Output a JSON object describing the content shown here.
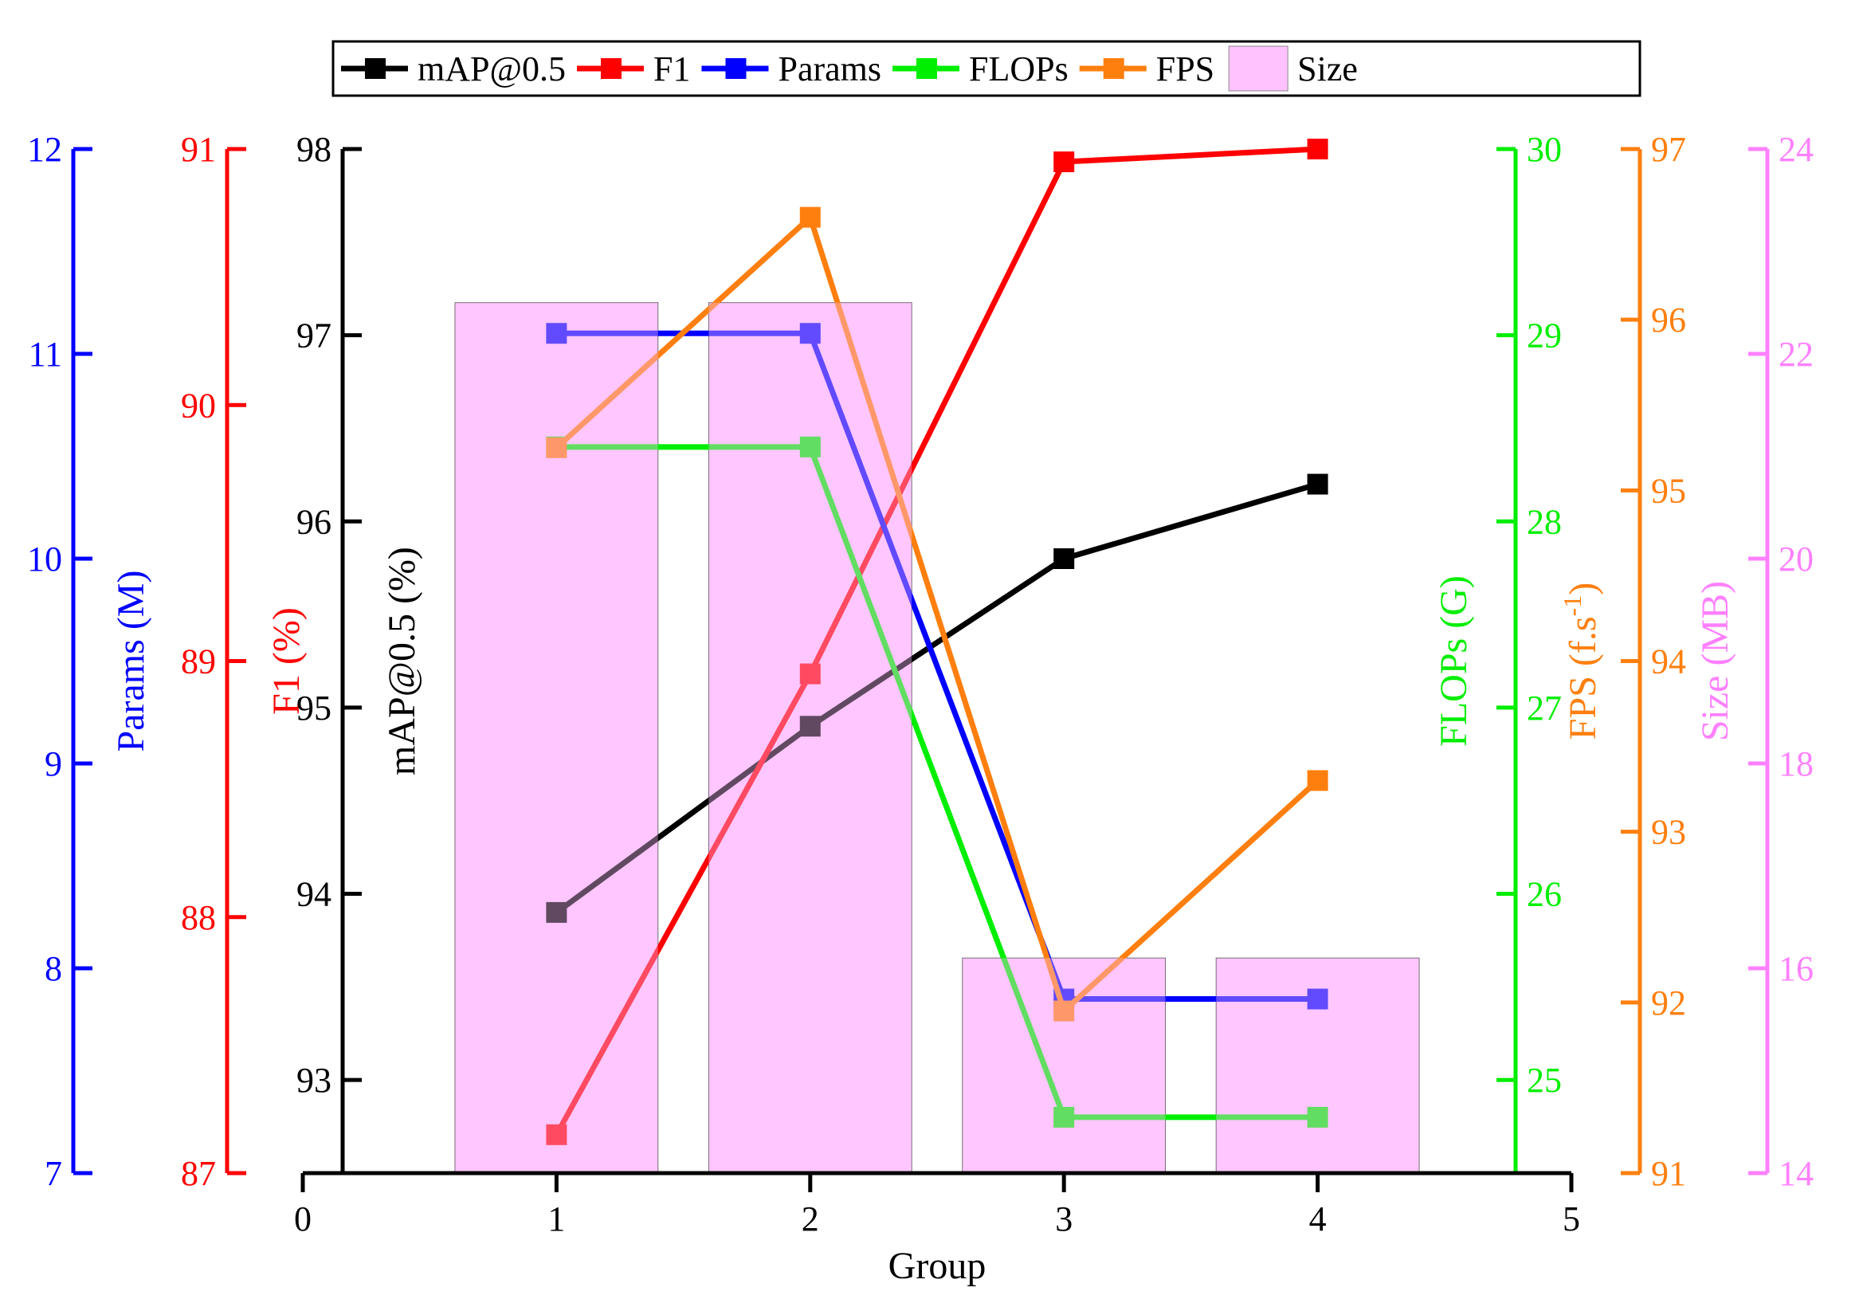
{
  "chart_data": {
    "type": "bar+line",
    "x": [
      1,
      2,
      3,
      4
    ],
    "xlim": [
      0,
      5
    ],
    "xticks": [
      "0",
      "1",
      "2",
      "3",
      "4",
      "5"
    ],
    "xlabel": "Group",
    "legend": {
      "placement": "top-center",
      "entries": [
        "mAP@0.5",
        "F1",
        "Params",
        "FLOPs",
        "FPS",
        "Size"
      ]
    },
    "bars": {
      "name": "Size",
      "values": [
        22.5,
        22.5,
        16.1,
        16.1
      ],
      "color": "#ffc2ff"
    },
    "series": [
      {
        "name": "mAP@0.5",
        "values": [
          93.9,
          94.9,
          95.8,
          96.2
        ],
        "color": "#000000",
        "axis": "map"
      },
      {
        "name": "F1",
        "values": [
          87.15,
          88.95,
          90.95,
          91.0
        ],
        "color": "#ff0000",
        "axis": "f1"
      },
      {
        "name": "Params",
        "values": [
          11.1,
          11.1,
          7.85,
          7.85
        ],
        "color": "#0000ff",
        "axis": "params"
      },
      {
        "name": "FLOPs",
        "values": [
          28.4,
          28.4,
          24.8,
          24.8
        ],
        "color": "#00ee00",
        "axis": "flops"
      },
      {
        "name": "FPS",
        "values": [
          95.25,
          96.6,
          91.95,
          93.3
        ],
        "color": "#ff7f0e",
        "axis": "fps"
      }
    ],
    "axes": {
      "params": {
        "label": "Params (M)",
        "ylim": [
          7,
          12
        ],
        "ticks": [
          "7",
          "8",
          "9",
          "10",
          "11",
          "12"
        ],
        "color": "#0000ff"
      },
      "f1": {
        "label": "F1 (%)",
        "ylim": [
          87,
          91
        ],
        "ticks": [
          "87",
          "88",
          "89",
          "90",
          "91"
        ],
        "color": "#ff0000"
      },
      "map": {
        "label": "mAP@0.5 (%)",
        "ylim": [
          92.5,
          98
        ],
        "ticks": [
          "93",
          "94",
          "95",
          "96",
          "97",
          "98"
        ],
        "color": "#000000"
      },
      "flops": {
        "label": "FLOPs (G)",
        "ylim": [
          24.5,
          30
        ],
        "ticks": [
          "25",
          "26",
          "27",
          "28",
          "29",
          "30"
        ],
        "color": "#00ee00"
      },
      "fps": {
        "label_main": "FPS (f.s",
        "label_sup": "-1",
        "label_end": ")",
        "ylim": [
          91,
          97
        ],
        "ticks": [
          "91",
          "92",
          "93",
          "94",
          "95",
          "96",
          "97"
        ],
        "color": "#ff7f0e"
      },
      "size": {
        "label": "Size (MB)",
        "ylim": [
          14,
          24
        ],
        "ticks": [
          "14",
          "16",
          "18",
          "20",
          "22",
          "24"
        ],
        "color": "#ff80ff"
      }
    }
  }
}
